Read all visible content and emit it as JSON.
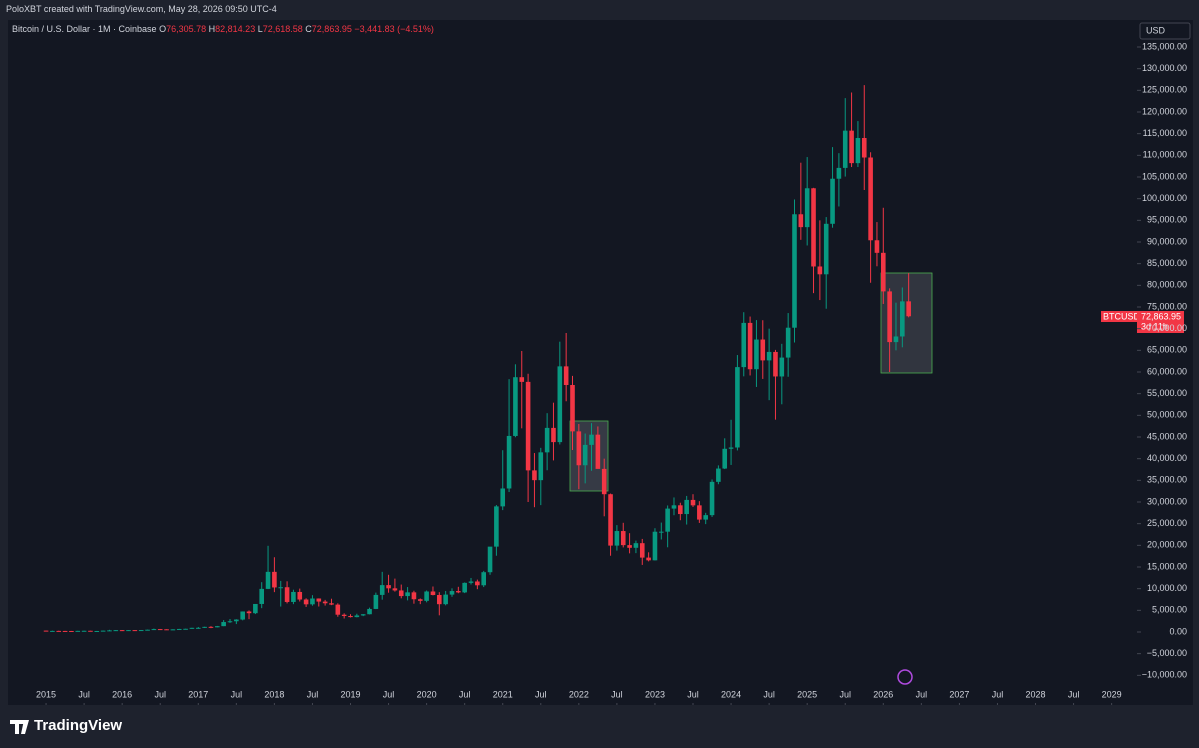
{
  "header": {
    "caption": "PoloXBT created with TradingView.com, May 28, 2026 09:50 UTC-4",
    "brand": "TradingView"
  },
  "chart_data": {
    "type": "candlestick",
    "title": "Bitcoin / U.S. Dollar · 1M · Coinbase",
    "quote": [
      {
        "label": "O",
        "value": "76,305.78"
      },
      {
        "label": "H",
        "value": "82,814.23"
      },
      {
        "label": "L",
        "value": "72,618.58"
      },
      {
        "label": "C",
        "value": "72,863.95"
      }
    ],
    "change": "−3,441.83 (−4.51%)",
    "currency": "USD",
    "symbol": "BTCUSD",
    "last_price": "72,863.95",
    "countdown": "3d 11h",
    "up_color": "#089981",
    "down_color": "#f23645",
    "x": [
      "2015-01",
      "2015-02",
      "2015-03",
      "2015-04",
      "2015-05",
      "2015-06",
      "2015-07",
      "2015-08",
      "2015-09",
      "2015-10",
      "2015-11",
      "2015-12",
      "2016-01",
      "2016-02",
      "2016-03",
      "2016-04",
      "2016-05",
      "2016-06",
      "2016-07",
      "2016-08",
      "2016-09",
      "2016-10",
      "2016-11",
      "2016-12",
      "2017-01",
      "2017-02",
      "2017-03",
      "2017-04",
      "2017-05",
      "2017-06",
      "2017-07",
      "2017-08",
      "2017-09",
      "2017-10",
      "2017-11",
      "2017-12",
      "2018-01",
      "2018-02",
      "2018-03",
      "2018-04",
      "2018-05",
      "2018-06",
      "2018-07",
      "2018-08",
      "2018-09",
      "2018-10",
      "2018-11",
      "2018-12",
      "2019-01",
      "2019-02",
      "2019-03",
      "2019-04",
      "2019-05",
      "2019-06",
      "2019-07",
      "2019-08",
      "2019-09",
      "2019-10",
      "2019-11",
      "2019-12",
      "2020-01",
      "2020-02",
      "2020-03",
      "2020-04",
      "2020-05",
      "2020-06",
      "2020-07",
      "2020-08",
      "2020-09",
      "2020-10",
      "2020-11",
      "2020-12",
      "2021-01",
      "2021-02",
      "2021-03",
      "2021-04",
      "2021-05",
      "2021-06",
      "2021-07",
      "2021-08",
      "2021-09",
      "2021-10",
      "2021-11",
      "2021-12",
      "2022-01",
      "2022-02",
      "2022-03",
      "2022-04",
      "2022-05",
      "2022-06",
      "2022-07",
      "2022-08",
      "2022-09",
      "2022-10",
      "2022-11",
      "2022-12",
      "2023-01",
      "2023-02",
      "2023-03",
      "2023-04",
      "2023-05",
      "2023-06",
      "2023-07",
      "2023-08",
      "2023-09",
      "2023-10",
      "2023-11",
      "2023-12",
      "2024-01",
      "2024-02",
      "2024-03",
      "2024-04",
      "2024-05",
      "2024-06",
      "2024-07",
      "2024-08",
      "2024-09",
      "2024-10",
      "2024-11",
      "2024-12",
      "2025-01",
      "2025-02",
      "2025-03",
      "2025-04",
      "2025-05",
      "2025-06",
      "2025-07",
      "2025-08",
      "2025-09",
      "2025-10",
      "2025-11",
      "2025-12",
      "2026-01",
      "2026-02",
      "2026-03",
      "2026-04",
      "2026-05"
    ],
    "open": [
      320,
      217,
      254,
      244,
      236,
      230,
      263,
      284,
      230,
      236,
      314,
      377,
      430,
      369,
      437,
      416,
      448,
      531,
      673,
      624,
      575,
      609,
      701,
      743,
      964,
      968,
      1190,
      1080,
      1350,
      2300,
      2480,
      2875,
      4735,
      4340,
      6470,
      9950,
      13880,
      10280,
      10330,
      6930,
      9240,
      7500,
      6390,
      7730,
      7020,
      6630,
      6320,
      3990,
      3690,
      3440,
      3820,
      4100,
      5320,
      8560,
      10820,
      10080,
      9590,
      8290,
      9150,
      7560,
      7190,
      9350,
      8540,
      6420,
      8630,
      9450,
      9140,
      11340,
      11660,
      10780,
      13800,
      19700,
      28990,
      33120,
      45240,
      58800,
      57720,
      37300,
      35040,
      41460,
      47100,
      43820,
      61300,
      57000,
      46300,
      38480,
      43180,
      45540,
      37640,
      31800,
      19940,
      23300,
      20050,
      19430,
      20500,
      17170,
      16540,
      23140,
      23150,
      28480,
      29240,
      27220,
      30480,
      29230,
      25940,
      26970,
      34650,
      37720,
      42280,
      42580,
      61130,
      71330,
      60640,
      67490,
      62680,
      64630,
      58970,
      63330,
      70220,
      96400,
      93430,
      102400,
      84350,
      82550,
      94200,
      104600,
      107100,
      115700,
      108200,
      114000,
      109500,
      90400,
      87500,
      78600,
      66900,
      68200,
      76305.78
    ],
    "high": [
      320,
      300,
      300,
      262,
      247,
      269,
      317,
      285,
      245,
      333,
      502,
      465,
      463,
      448,
      438,
      467,
      548,
      780,
      703,
      628,
      630,
      725,
      755,
      975,
      1160,
      1210,
      1350,
      1400,
      2760,
      3000,
      2950,
      4750,
      4980,
      6450,
      11500,
      19890,
      17250,
      11790,
      11700,
      9760,
      10020,
      7780,
      8500,
      7760,
      7410,
      7680,
      6620,
      4310,
      4110,
      4210,
      4140,
      5620,
      9090,
      13880,
      13200,
      12320,
      10950,
      10370,
      9520,
      7740,
      9580,
      10500,
      9190,
      9470,
      10080,
      10430,
      11440,
      12470,
      12090,
      14100,
      19480,
      29300,
      41950,
      58350,
      61780,
      64850,
      59600,
      41300,
      42500,
      50500,
      52920,
      67000,
      69000,
      59100,
      48000,
      45800,
      48200,
      47440,
      40000,
      31950,
      24670,
      25200,
      22800,
      21090,
      21480,
      18390,
      23950,
      25250,
      29200,
      31050,
      29830,
      31400,
      31800,
      30200,
      27500,
      35200,
      38450,
      44700,
      48970,
      63910,
      73800,
      72800,
      71980,
      71950,
      70000,
      65100,
      66500,
      73600,
      99800,
      108300,
      109600,
      102500,
      95000,
      95750,
      111900,
      110500,
      123200,
      124500,
      117900,
      126200,
      110700,
      94600,
      97900,
      79300,
      76000,
      79500,
      82814.23
    ],
    "low": [
      170,
      212,
      236,
      214,
      225,
      219,
      254,
      198,
      225,
      235,
      300,
      343,
      350,
      366,
      396,
      414,
      436,
      518,
      605,
      465,
      562,
      606,
      685,
      740,
      751,
      915,
      890,
      1060,
      1350,
      2100,
      1830,
      2690,
      2970,
      4140,
      5500,
      9900,
      9200,
      5870,
      6600,
      6430,
      7040,
      5780,
      6070,
      5880,
      6100,
      6200,
      3520,
      3120,
      3350,
      3380,
      3660,
      4070,
      5280,
      7460,
      9070,
      9320,
      7770,
      7300,
      6530,
      6430,
      6850,
      8450,
      3850,
      6150,
      8120,
      8950,
      8980,
      10960,
      9880,
      10370,
      13200,
      17600,
      28130,
      32300,
      44950,
      47000,
      30000,
      28800,
      29280,
      37330,
      39600,
      43280,
      53250,
      42000,
      32950,
      34300,
      37200,
      37700,
      26700,
      17600,
      18780,
      19520,
      18150,
      18200,
      15480,
      16300,
      16500,
      21350,
      19550,
      26950,
      25800,
      24800,
      28860,
      25170,
      24900,
      26550,
      34100,
      37600,
      38550,
      41900,
      59000,
      59200,
      56550,
      58400,
      53500,
      49000,
      52550,
      58900,
      66800,
      90500,
      89200,
      78200,
      76600,
      74600,
      93300,
      98200,
      105100,
      107300,
      107300,
      102000,
      80600,
      84400,
      75700,
      60000,
      65000,
      65700,
      72618.58
    ],
    "close": [
      217,
      254,
      244,
      236,
      230,
      263,
      284,
      230,
      236,
      314,
      377,
      430,
      369,
      437,
      416,
      448,
      531,
      673,
      624,
      575,
      609,
      701,
      743,
      964,
      968,
      1190,
      1080,
      1350,
      2300,
      2480,
      2875,
      4735,
      4340,
      6470,
      9950,
      13880,
      10280,
      10330,
      6930,
      9240,
      7500,
      6390,
      7730,
      7020,
      6630,
      6320,
      3990,
      3690,
      3440,
      3820,
      4100,
      5320,
      8560,
      10820,
      10080,
      9590,
      8290,
      9150,
      7560,
      7190,
      9350,
      8540,
      6420,
      8630,
      9450,
      9140,
      11340,
      11660,
      10780,
      13800,
      19700,
      28990,
      33120,
      45240,
      58800,
      57720,
      37300,
      35040,
      41460,
      47100,
      43820,
      61300,
      57000,
      46300,
      38480,
      43180,
      45540,
      37640,
      31800,
      19940,
      23300,
      20050,
      19430,
      20500,
      17170,
      16540,
      23140,
      23150,
      28480,
      29240,
      27220,
      30480,
      29230,
      25940,
      26970,
      34650,
      37720,
      42280,
      42580,
      61130,
      71330,
      60640,
      67490,
      62680,
      64630,
      58970,
      63330,
      70220,
      96400,
      93430,
      102400,
      84350,
      82550,
      94200,
      104600,
      107100,
      115700,
      108200,
      114000,
      109500,
      90400,
      87500,
      78600,
      66900,
      68200,
      76300,
      72863.95
    ],
    "xlim": [
      "2014-07",
      "2029-05"
    ],
    "xticks": [
      {
        "value": "2015-01",
        "label": "2015"
      },
      {
        "value": "2015-07",
        "label": "Jul"
      },
      {
        "value": "2016-01",
        "label": "2016"
      },
      {
        "value": "2016-07",
        "label": "Jul"
      },
      {
        "value": "2017-01",
        "label": "2017"
      },
      {
        "value": "2017-07",
        "label": "Jul"
      },
      {
        "value": "2018-01",
        "label": "2018"
      },
      {
        "value": "2018-07",
        "label": "Jul"
      },
      {
        "value": "2019-01",
        "label": "2019"
      },
      {
        "value": "2019-07",
        "label": "Jul"
      },
      {
        "value": "2020-01",
        "label": "2020"
      },
      {
        "value": "2020-07",
        "label": "Jul"
      },
      {
        "value": "2021-01",
        "label": "2021"
      },
      {
        "value": "2021-07",
        "label": "Jul"
      },
      {
        "value": "2022-01",
        "label": "2022"
      },
      {
        "value": "2022-07",
        "label": "Jul"
      },
      {
        "value": "2023-01",
        "label": "2023"
      },
      {
        "value": "2023-07",
        "label": "Jul"
      },
      {
        "value": "2024-01",
        "label": "2024"
      },
      {
        "value": "2024-07",
        "label": "Jul"
      },
      {
        "value": "2025-01",
        "label": "2025"
      },
      {
        "value": "2025-07",
        "label": "Jul"
      },
      {
        "value": "2026-01",
        "label": "2026"
      },
      {
        "value": "2026-07",
        "label": "Jul"
      },
      {
        "value": "2027-01",
        "label": "2027"
      },
      {
        "value": "2027-07",
        "label": "Jul"
      },
      {
        "value": "2028-01",
        "label": "2028"
      },
      {
        "value": "2028-07",
        "label": "Jul"
      },
      {
        "value": "2029-01",
        "label": "2029"
      }
    ],
    "ylim": [
      -16846,
      141231
    ],
    "yticks": [
      {
        "value": -10000,
        "label": "−10,000.00"
      },
      {
        "value": -5000,
        "label": "−5,000.00"
      },
      {
        "value": 0,
        "label": "0.00"
      },
      {
        "value": 5000,
        "label": "5,000.00"
      },
      {
        "value": 10000,
        "label": "10,000.00"
      },
      {
        "value": 15000,
        "label": "15,000.00"
      },
      {
        "value": 20000,
        "label": "20,000.00"
      },
      {
        "value": 25000,
        "label": "25,000.00"
      },
      {
        "value": 30000,
        "label": "30,000.00"
      },
      {
        "value": 35000,
        "label": "35,000.00"
      },
      {
        "value": 40000,
        "label": "40,000.00"
      },
      {
        "value": 45000,
        "label": "45,000.00"
      },
      {
        "value": 50000,
        "label": "50,000.00"
      },
      {
        "value": 55000,
        "label": "55,000.00"
      },
      {
        "value": 60000,
        "label": "60,000.00"
      },
      {
        "value": 65000,
        "label": "65,000.00"
      },
      {
        "value": 70000,
        "label": "70,000.00"
      },
      {
        "value": 75000,
        "label": "75,000.00"
      },
      {
        "value": 80000,
        "label": "80,000.00"
      },
      {
        "value": 85000,
        "label": "85,000.00"
      },
      {
        "value": 90000,
        "label": "90,000.00"
      },
      {
        "value": 95000,
        "label": "95,000.00"
      },
      {
        "value": 100000,
        "label": "100,000.00"
      },
      {
        "value": 105000,
        "label": "105,000.00"
      },
      {
        "value": 110000,
        "label": "110,000.00"
      },
      {
        "value": 115000,
        "label": "115,000.00"
      },
      {
        "value": 120000,
        "label": "120,000.00"
      },
      {
        "value": 125000,
        "label": "125,000.00"
      },
      {
        "value": 130000,
        "label": "130,000.00"
      },
      {
        "value": 135000,
        "label": "135,000.00"
      }
    ]
  }
}
